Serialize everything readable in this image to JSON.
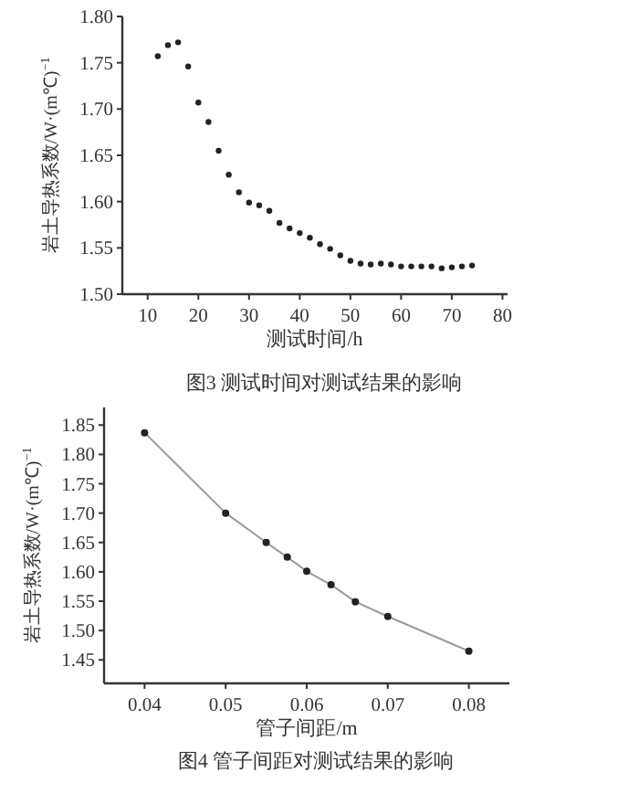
{
  "chart_data": [
    {
      "type": "scatter",
      "xlabel": "测试时间/h",
      "ylabel": "岩土导热系数/W·(m℃)$^{−1}$",
      "annotations": [
        "图3 测试时间对测试结果的影响"
      ],
      "marker": "circle",
      "x": [
        12,
        14,
        16,
        18,
        20,
        22,
        24,
        26,
        28,
        30,
        32,
        34,
        36,
        38,
        40,
        42,
        44,
        46,
        48,
        50,
        52,
        54,
        56,
        58,
        60,
        62,
        64,
        66,
        68,
        70,
        72,
        74
      ],
      "values": [
        1.757,
        1.769,
        1.772,
        1.746,
        1.707,
        1.686,
        1.655,
        1.629,
        1.61,
        1.599,
        1.596,
        1.59,
        1.577,
        1.571,
        1.566,
        1.561,
        1.554,
        1.549,
        1.542,
        1.536,
        1.533,
        1.532,
        1.533,
        1.532,
        1.53,
        1.53,
        1.53,
        1.53,
        1.528,
        1.529,
        1.53,
        1.531
      ],
      "xlim": [
        5,
        81
      ],
      "ylim": [
        1.5,
        1.8
      ],
      "xticks": [
        10,
        20,
        30,
        40,
        50,
        60,
        70,
        80
      ],
      "yticks": [
        {
          "value": 1.5,
          "label": "1.50"
        },
        1.55,
        {
          "value": 1.6,
          "label": "1.60"
        },
        1.65,
        {
          "value": 1.7,
          "label": "1.70"
        },
        1.75,
        {
          "value": 1.8,
          "label": "1.80"
        }
      ]
    },
    {
      "type": "line",
      "xlabel": "管子间距/m",
      "ylabel": "岩土导热系数/W·(m℃)$^{−1}$",
      "annotations": [
        "图4 管子间距对测试结果的影响"
      ],
      "marker": "circle",
      "line_style": "solid",
      "x": [
        0.04,
        0.05,
        0.055,
        0.0576,
        0.06,
        0.063,
        0.066,
        0.07,
        0.08
      ],
      "values": [
        1.837,
        1.7,
        1.65,
        1.625,
        1.601,
        1.578,
        1.549,
        1.524,
        1.465
      ],
      "xlim": [
        0.035,
        0.085
      ],
      "ylim": [
        1.41,
        1.88
      ],
      "xticks": [
        0.04,
        0.05,
        0.06,
        0.07,
        0.08
      ],
      "yticks": [
        1.45,
        {
          "value": 1.5,
          "label": "1.50"
        },
        1.55,
        {
          "value": 1.6,
          "label": "1.60"
        },
        1.65,
        {
          "value": 1.7,
          "label": "1.70"
        },
        1.75,
        {
          "value": 1.8,
          "label": "1.80"
        },
        1.85
      ]
    }
  ]
}
